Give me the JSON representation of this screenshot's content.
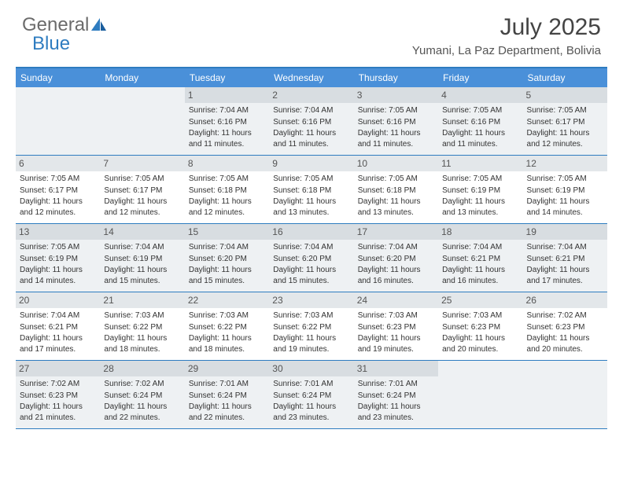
{
  "logo": {
    "text1": "General",
    "text2": "Blue"
  },
  "title": "July 2025",
  "location": "Yumani, La Paz Department, Bolivia",
  "colors": {
    "header_bg": "#4a90d9",
    "border": "#2e7cc0",
    "shaded": "#eef1f3",
    "daynum_bg": "#e3e7ea",
    "text": "#333333"
  },
  "dayNames": [
    "Sunday",
    "Monday",
    "Tuesday",
    "Wednesday",
    "Thursday",
    "Friday",
    "Saturday"
  ],
  "weeks": [
    [
      null,
      null,
      {
        "n": "1",
        "sr": "Sunrise: 7:04 AM",
        "ss": "Sunset: 6:16 PM",
        "dl": "Daylight: 11 hours and 11 minutes."
      },
      {
        "n": "2",
        "sr": "Sunrise: 7:04 AM",
        "ss": "Sunset: 6:16 PM",
        "dl": "Daylight: 11 hours and 11 minutes."
      },
      {
        "n": "3",
        "sr": "Sunrise: 7:05 AM",
        "ss": "Sunset: 6:16 PM",
        "dl": "Daylight: 11 hours and 11 minutes."
      },
      {
        "n": "4",
        "sr": "Sunrise: 7:05 AM",
        "ss": "Sunset: 6:16 PM",
        "dl": "Daylight: 11 hours and 11 minutes."
      },
      {
        "n": "5",
        "sr": "Sunrise: 7:05 AM",
        "ss": "Sunset: 6:17 PM",
        "dl": "Daylight: 11 hours and 12 minutes."
      }
    ],
    [
      {
        "n": "6",
        "sr": "Sunrise: 7:05 AM",
        "ss": "Sunset: 6:17 PM",
        "dl": "Daylight: 11 hours and 12 minutes."
      },
      {
        "n": "7",
        "sr": "Sunrise: 7:05 AM",
        "ss": "Sunset: 6:17 PM",
        "dl": "Daylight: 11 hours and 12 minutes."
      },
      {
        "n": "8",
        "sr": "Sunrise: 7:05 AM",
        "ss": "Sunset: 6:18 PM",
        "dl": "Daylight: 11 hours and 12 minutes."
      },
      {
        "n": "9",
        "sr": "Sunrise: 7:05 AM",
        "ss": "Sunset: 6:18 PM",
        "dl": "Daylight: 11 hours and 13 minutes."
      },
      {
        "n": "10",
        "sr": "Sunrise: 7:05 AM",
        "ss": "Sunset: 6:18 PM",
        "dl": "Daylight: 11 hours and 13 minutes."
      },
      {
        "n": "11",
        "sr": "Sunrise: 7:05 AM",
        "ss": "Sunset: 6:19 PM",
        "dl": "Daylight: 11 hours and 13 minutes."
      },
      {
        "n": "12",
        "sr": "Sunrise: 7:05 AM",
        "ss": "Sunset: 6:19 PM",
        "dl": "Daylight: 11 hours and 14 minutes."
      }
    ],
    [
      {
        "n": "13",
        "sr": "Sunrise: 7:05 AM",
        "ss": "Sunset: 6:19 PM",
        "dl": "Daylight: 11 hours and 14 minutes."
      },
      {
        "n": "14",
        "sr": "Sunrise: 7:04 AM",
        "ss": "Sunset: 6:19 PM",
        "dl": "Daylight: 11 hours and 15 minutes."
      },
      {
        "n": "15",
        "sr": "Sunrise: 7:04 AM",
        "ss": "Sunset: 6:20 PM",
        "dl": "Daylight: 11 hours and 15 minutes."
      },
      {
        "n": "16",
        "sr": "Sunrise: 7:04 AM",
        "ss": "Sunset: 6:20 PM",
        "dl": "Daylight: 11 hours and 15 minutes."
      },
      {
        "n": "17",
        "sr": "Sunrise: 7:04 AM",
        "ss": "Sunset: 6:20 PM",
        "dl": "Daylight: 11 hours and 16 minutes."
      },
      {
        "n": "18",
        "sr": "Sunrise: 7:04 AM",
        "ss": "Sunset: 6:21 PM",
        "dl": "Daylight: 11 hours and 16 minutes."
      },
      {
        "n": "19",
        "sr": "Sunrise: 7:04 AM",
        "ss": "Sunset: 6:21 PM",
        "dl": "Daylight: 11 hours and 17 minutes."
      }
    ],
    [
      {
        "n": "20",
        "sr": "Sunrise: 7:04 AM",
        "ss": "Sunset: 6:21 PM",
        "dl": "Daylight: 11 hours and 17 minutes."
      },
      {
        "n": "21",
        "sr": "Sunrise: 7:03 AM",
        "ss": "Sunset: 6:22 PM",
        "dl": "Daylight: 11 hours and 18 minutes."
      },
      {
        "n": "22",
        "sr": "Sunrise: 7:03 AM",
        "ss": "Sunset: 6:22 PM",
        "dl": "Daylight: 11 hours and 18 minutes."
      },
      {
        "n": "23",
        "sr": "Sunrise: 7:03 AM",
        "ss": "Sunset: 6:22 PM",
        "dl": "Daylight: 11 hours and 19 minutes."
      },
      {
        "n": "24",
        "sr": "Sunrise: 7:03 AM",
        "ss": "Sunset: 6:23 PM",
        "dl": "Daylight: 11 hours and 19 minutes."
      },
      {
        "n": "25",
        "sr": "Sunrise: 7:03 AM",
        "ss": "Sunset: 6:23 PM",
        "dl": "Daylight: 11 hours and 20 minutes."
      },
      {
        "n": "26",
        "sr": "Sunrise: 7:02 AM",
        "ss": "Sunset: 6:23 PM",
        "dl": "Daylight: 11 hours and 20 minutes."
      }
    ],
    [
      {
        "n": "27",
        "sr": "Sunrise: 7:02 AM",
        "ss": "Sunset: 6:23 PM",
        "dl": "Daylight: 11 hours and 21 minutes."
      },
      {
        "n": "28",
        "sr": "Sunrise: 7:02 AM",
        "ss": "Sunset: 6:24 PM",
        "dl": "Daylight: 11 hours and 22 minutes."
      },
      {
        "n": "29",
        "sr": "Sunrise: 7:01 AM",
        "ss": "Sunset: 6:24 PM",
        "dl": "Daylight: 11 hours and 22 minutes."
      },
      {
        "n": "30",
        "sr": "Sunrise: 7:01 AM",
        "ss": "Sunset: 6:24 PM",
        "dl": "Daylight: 11 hours and 23 minutes."
      },
      {
        "n": "31",
        "sr": "Sunrise: 7:01 AM",
        "ss": "Sunset: 6:24 PM",
        "dl": "Daylight: 11 hours and 23 minutes."
      },
      null,
      null
    ]
  ]
}
